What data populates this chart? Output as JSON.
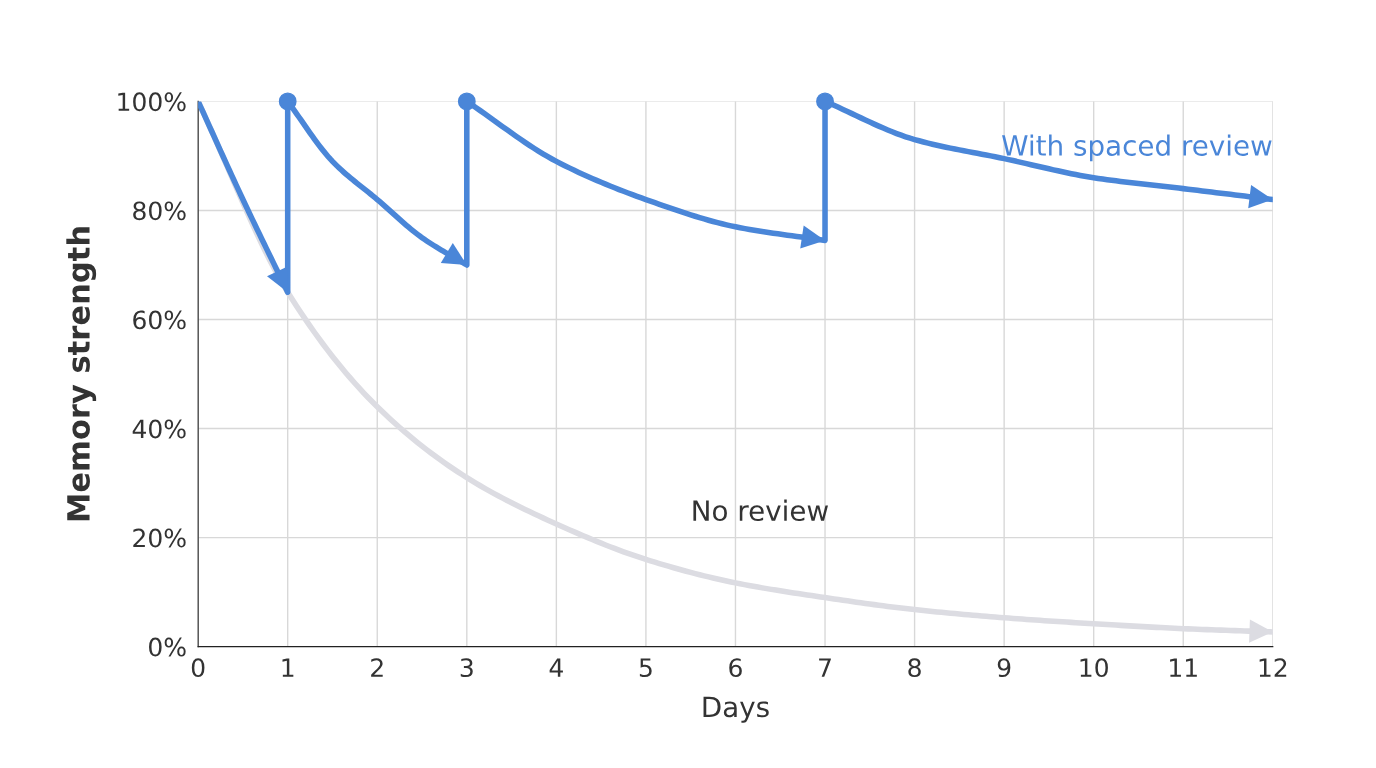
{
  "chart_data": {
    "type": "line",
    "xlabel": "Days",
    "ylabel": "Memory strength",
    "xlim": [
      0,
      12
    ],
    "xticks": [
      0,
      1,
      2,
      3,
      4,
      5,
      6,
      7,
      8,
      9,
      10,
      11,
      12
    ],
    "ylim": [
      0,
      100
    ],
    "yticks": [
      {
        "value": 0,
        "label": "0%"
      },
      {
        "value": 20,
        "label": "20%"
      },
      {
        "value": 40,
        "label": "40%"
      },
      {
        "value": 60,
        "label": "60%"
      },
      {
        "value": 80,
        "label": "80%"
      },
      {
        "value": 100,
        "label": "100%"
      }
    ],
    "grid": true,
    "legend": false,
    "series": [
      {
        "name": "No review",
        "color": "#dcdce2",
        "x": [
          0,
          1,
          2,
          3,
          4,
          5,
          6,
          7,
          8,
          9,
          10,
          11,
          12
        ],
        "values": [
          100,
          65,
          44,
          31,
          22.5,
          16,
          11.7,
          9,
          6.8,
          5.3,
          4.2,
          3.3,
          2.7
        ]
      },
      {
        "name": "With spaced review",
        "color": "#4a86d8",
        "x": [
          0,
          0.5,
          1,
          1,
          1.5,
          2,
          2.5,
          3,
          3,
          4,
          5,
          6,
          7,
          7,
          8,
          9,
          10,
          11,
          12
        ],
        "values": [
          100,
          82,
          65,
          100,
          89,
          82,
          75,
          70,
          100,
          89,
          82,
          77,
          74.5,
          100,
          93,
          89.5,
          86,
          84,
          82
        ]
      },
      {
        "type": "scatter",
        "marker": "circle",
        "color": "#4a86d8",
        "x": [
          1,
          3,
          7
        ],
        "values": [
          100,
          100,
          100
        ]
      }
    ]
  }
}
